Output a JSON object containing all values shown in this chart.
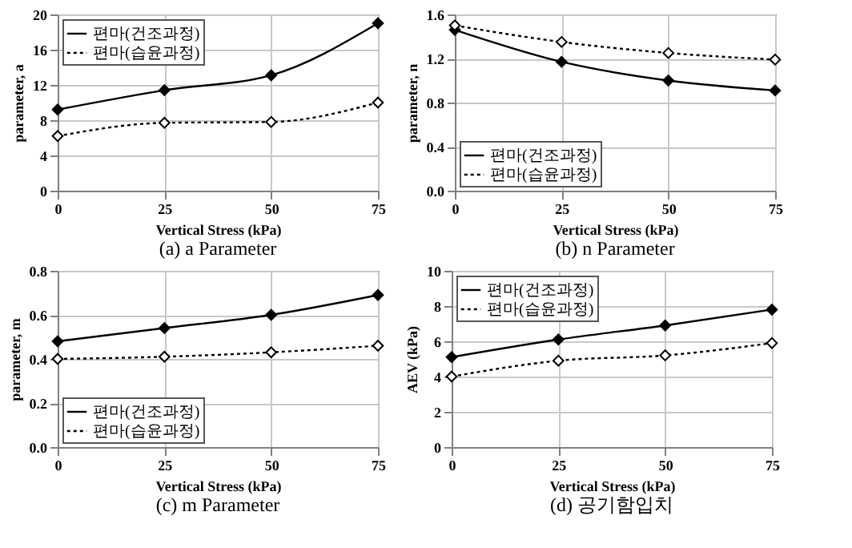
{
  "chart_data": [
    {
      "type": "line",
      "title": "(a) a Parameter",
      "xlabel": "Vertical Stress (kPa)",
      "ylabel": "parameter, a",
      "x": [
        0,
        25,
        50,
        75
      ],
      "xlim": [
        0,
        75
      ],
      "xticks": [
        0,
        25,
        50,
        75
      ],
      "ylim": [
        0,
        20
      ],
      "yticks": [
        0,
        4,
        8,
        12,
        16,
        20
      ],
      "grid": true,
      "legend": "top left",
      "marker": "diamond",
      "series": [
        {
          "name": "편마(건조과정)",
          "color": "#000000",
          "line_style": "solid",
          "values": [
            9.2,
            11.4,
            13.1,
            19.0
          ]
        },
        {
          "name": "편마(습윤과정)",
          "color": "#000000",
          "line_style": "dotted",
          "values": [
            6.2,
            7.7,
            7.8,
            10.0
          ]
        }
      ]
    },
    {
      "type": "line",
      "title": "(b) n Parameter",
      "xlabel": "Vertical Stress (kPa)",
      "ylabel": "parameter, n",
      "x": [
        0,
        25,
        50,
        75
      ],
      "xlim": [
        0,
        75
      ],
      "xticks": [
        0,
        25,
        50,
        75
      ],
      "ylim": [
        0,
        1.6
      ],
      "yticks": [
        {
          "value": 0,
          "label": "0.0"
        },
        0.4,
        0.8,
        1.2,
        1.6
      ],
      "grid": true,
      "legend": "bottom left",
      "marker": "diamond",
      "series": [
        {
          "name": "편마(건조과정)",
          "color": "#000000",
          "line_style": "solid",
          "values": [
            1.46,
            1.17,
            1.0,
            0.91
          ]
        },
        {
          "name": "편마(습윤과정)",
          "color": "#000000",
          "line_style": "dotted",
          "values": [
            1.5,
            1.35,
            1.25,
            1.19
          ]
        }
      ]
    },
    {
      "type": "line",
      "title": "(c) m Parameter",
      "xlabel": "Vertical Stress (kPa)",
      "ylabel": "parameter, m",
      "x": [
        0,
        25,
        50,
        75
      ],
      "xlim": [
        0,
        75
      ],
      "xticks": [
        0,
        25,
        50,
        75
      ],
      "ylim": [
        0,
        0.8
      ],
      "yticks": [
        {
          "value": 0,
          "label": "0.0"
        },
        0.2,
        0.4,
        0.6,
        0.8
      ],
      "grid": true,
      "legend": "bottom left",
      "marker": "diamond",
      "series": [
        {
          "name": "편마(건조과정)",
          "color": "#000000",
          "line_style": "solid",
          "values": [
            0.48,
            0.54,
            0.6,
            0.69
          ]
        },
        {
          "name": "편마(습윤과정)",
          "color": "#000000",
          "line_style": "dotted",
          "values": [
            0.4,
            0.41,
            0.43,
            0.46
          ]
        }
      ]
    },
    {
      "type": "line",
      "title": "(d) 공기함입치",
      "xlabel": "Vertical Stress (kPa)",
      "ylabel": "AEV (kPa)",
      "x": [
        0,
        25,
        50,
        75
      ],
      "xlim": [
        0,
        75
      ],
      "xticks": [
        0,
        25,
        50,
        75
      ],
      "ylim": [
        0,
        10
      ],
      "yticks": [
        0,
        2,
        4,
        6,
        8,
        10
      ],
      "grid": true,
      "legend": "top left",
      "marker": "diamond",
      "series": [
        {
          "name": "편마(건조과정)",
          "color": "#000000",
          "line_style": "solid",
          "values": [
            5.1,
            6.1,
            6.9,
            7.8
          ]
        },
        {
          "name": "편마(습윤과정)",
          "color": "#000000",
          "line_style": "dotted",
          "values": [
            4.0,
            4.9,
            5.2,
            5.9
          ]
        }
      ]
    }
  ]
}
